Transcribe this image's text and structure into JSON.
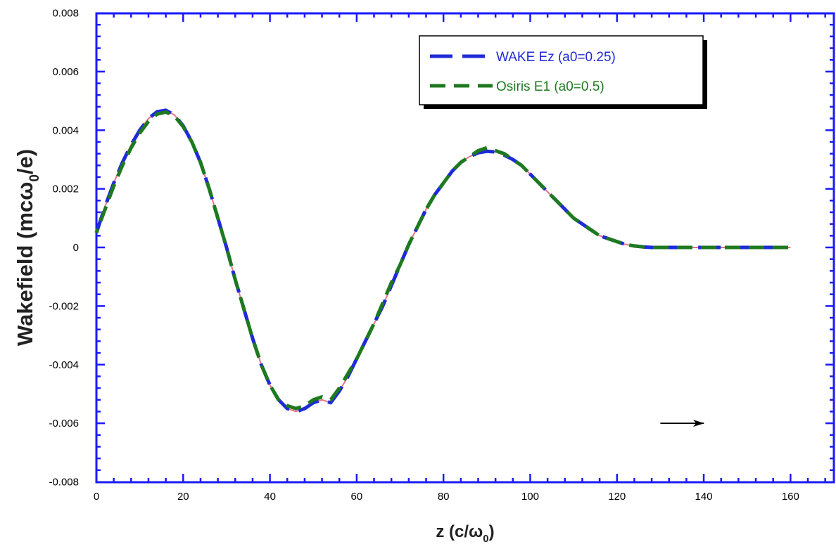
{
  "chart_data": {
    "type": "line",
    "xlabel": {
      "main": "z (c/ω",
      "sub": "0",
      "end": ")"
    },
    "ylabel": {
      "main": "Wakefield (mcω",
      "sub": "0",
      "end": "/e)"
    },
    "xlim": [
      0,
      170
    ],
    "ylim": [
      -0.008,
      0.008
    ],
    "xticks": [
      "0",
      "20",
      "40",
      "60",
      "80",
      "100",
      "120",
      "140",
      "160"
    ],
    "yticks": [
      "0.008",
      "0.006",
      "0.004",
      "0.002",
      "0",
      "-0.002",
      "-0.004",
      "-0.006",
      "-0.008"
    ],
    "grid": false,
    "legend_position": "top-right",
    "colors": {
      "axis": "#1a1aff",
      "wake": "#1f2bd6",
      "osiris": "#1e7a1e",
      "pink": "#e0506a"
    },
    "series": [
      {
        "name": "WAKE Ez (a0=0.25)",
        "color": "#1f2bd6",
        "x": [
          0,
          2,
          4,
          6,
          8,
          10,
          12,
          14,
          16,
          18,
          20,
          22,
          24,
          26,
          28,
          30,
          32,
          34,
          36,
          38,
          40,
          42,
          44,
          46,
          48,
          50,
          52,
          54,
          56,
          58,
          60,
          62,
          64,
          66,
          68,
          70,
          72,
          74,
          76,
          78,
          80,
          82,
          84,
          86,
          88,
          90,
          92,
          94,
          96,
          98,
          100,
          102,
          104,
          106,
          108,
          110,
          112,
          114,
          116,
          118,
          120,
          122,
          124,
          126,
          128,
          130,
          132,
          134,
          136,
          138,
          140,
          145,
          150,
          155,
          160
        ],
        "y": [
          0.0005,
          0.0014,
          0.0022,
          0.0029,
          0.0035,
          0.004,
          0.0044,
          0.00463,
          0.00468,
          0.00452,
          0.00415,
          0.0036,
          0.0029,
          0.002,
          0.001,
          0.0,
          -0.0011,
          -0.0021,
          -0.0031,
          -0.004,
          -0.0047,
          -0.0052,
          -0.0055,
          -0.0056,
          -0.0055,
          -0.0053,
          -0.0052,
          -0.0053,
          -0.0049,
          -0.0044,
          -0.0038,
          -0.0032,
          -0.0026,
          -0.002,
          -0.0013,
          -0.0006,
          0.0001,
          0.0007,
          0.0013,
          0.0018,
          0.0022,
          0.0026,
          0.0029,
          0.0031,
          0.00323,
          0.00328,
          0.00326,
          0.00315,
          0.003,
          0.0028,
          0.0025,
          0.0022,
          0.0019,
          0.0016,
          0.0013,
          0.001,
          0.0008,
          0.0006,
          0.0004,
          0.0003,
          0.0002,
          0.0001,
          5e-05,
          2e-05,
          0.0,
          0.0,
          0.0,
          0.0,
          0.0,
          0.0,
          0.0,
          0.0,
          0.0,
          0.0,
          0.0
        ]
      },
      {
        "name": "Osiris E1 (a0=0.5)",
        "color": "#1e7a1e",
        "x": [
          0,
          2,
          4,
          6,
          8,
          10,
          12,
          14,
          16,
          18,
          20,
          22,
          24,
          26,
          28,
          30,
          32,
          34,
          36,
          38,
          40,
          42,
          44,
          46,
          48,
          50,
          52,
          54,
          56,
          58,
          60,
          62,
          64,
          66,
          68,
          70,
          72,
          74,
          76,
          78,
          80,
          82,
          84,
          86,
          88,
          90,
          92,
          94,
          96,
          98,
          100,
          102,
          104,
          106,
          108,
          110,
          112,
          114,
          116,
          118,
          120,
          122,
          124,
          126,
          128,
          130,
          132,
          134,
          136,
          138,
          140,
          145,
          150,
          155,
          160
        ],
        "y": [
          0.0005,
          0.0013,
          0.0021,
          0.0028,
          0.0034,
          0.0039,
          0.0043,
          0.00455,
          0.00462,
          0.00448,
          0.00412,
          0.0036,
          0.0029,
          0.002,
          0.001,
          0.0,
          -0.0011,
          -0.0021,
          -0.0031,
          -0.004,
          -0.0047,
          -0.0052,
          -0.0054,
          -0.0055,
          -0.0054,
          -0.0052,
          -0.0051,
          -0.0052,
          -0.0048,
          -0.0043,
          -0.0038,
          -0.0032,
          -0.0026,
          -0.0019,
          -0.0012,
          -0.0006,
          0.0001,
          0.0007,
          0.0013,
          0.0018,
          0.0022,
          0.0026,
          0.0029,
          0.0031,
          0.0033,
          0.0034,
          0.0033,
          0.0032,
          0.003,
          0.0028,
          0.0025,
          0.0022,
          0.0019,
          0.0016,
          0.0013,
          0.001,
          0.0008,
          0.0006,
          0.0004,
          0.0003,
          0.0002,
          0.0001,
          5e-05,
          2e-05,
          0.0,
          0.0,
          0.0,
          0.0,
          0.0,
          0.0,
          0.0,
          0.0,
          0.0,
          0.0,
          0.0
        ]
      }
    ],
    "arrow": {
      "x_start": 130,
      "x_end": 140,
      "y": -0.006
    }
  }
}
